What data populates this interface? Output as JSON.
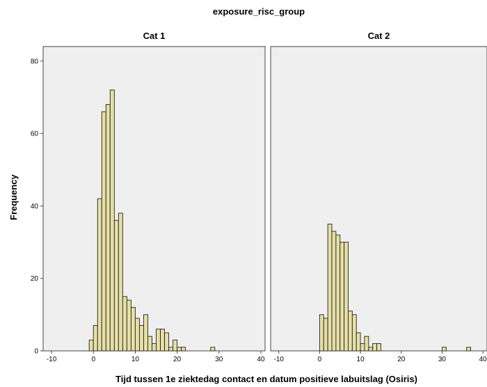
{
  "chart_data": {
    "type": "bar",
    "title": "exposure_risc_group",
    "xlabel": "Tijd tussen 1e ziektedag contact en datum positieve labuitslag (Osiris)",
    "ylabel": "Frequency",
    "xlim": [
      -12,
      41
    ],
    "ylim": [
      0,
      84
    ],
    "x_ticks": [
      -10,
      0,
      10,
      20,
      30,
      40
    ],
    "y_ticks": [
      0,
      20,
      40,
      60,
      80
    ],
    "bin_width": 1,
    "grid": false,
    "panels": [
      {
        "name": "Cat 1",
        "bins": [
          {
            "x": -1,
            "count": 3
          },
          {
            "x": 0,
            "count": 7
          },
          {
            "x": 1,
            "count": 42
          },
          {
            "x": 2,
            "count": 66
          },
          {
            "x": 3,
            "count": 68
          },
          {
            "x": 4,
            "count": 72
          },
          {
            "x": 5,
            "count": 36
          },
          {
            "x": 6,
            "count": 38
          },
          {
            "x": 7,
            "count": 15
          },
          {
            "x": 8,
            "count": 14
          },
          {
            "x": 9,
            "count": 12
          },
          {
            "x": 10,
            "count": 9
          },
          {
            "x": 11,
            "count": 7
          },
          {
            "x": 12,
            "count": 10
          },
          {
            "x": 13,
            "count": 4
          },
          {
            "x": 14,
            "count": 2
          },
          {
            "x": 15,
            "count": 6
          },
          {
            "x": 16,
            "count": 6
          },
          {
            "x": 17,
            "count": 5
          },
          {
            "x": 18,
            "count": 1
          },
          {
            "x": 19,
            "count": 3
          },
          {
            "x": 20,
            "count": 1
          },
          {
            "x": 21,
            "count": 1
          },
          {
            "x": 28,
            "count": 1
          }
        ]
      },
      {
        "name": "Cat 2",
        "bins": [
          {
            "x": 0,
            "count": 10
          },
          {
            "x": 1,
            "count": 9
          },
          {
            "x": 2,
            "count": 35
          },
          {
            "x": 3,
            "count": 33
          },
          {
            "x": 4,
            "count": 32
          },
          {
            "x": 5,
            "count": 30
          },
          {
            "x": 6,
            "count": 30
          },
          {
            "x": 7,
            "count": 11
          },
          {
            "x": 8,
            "count": 10
          },
          {
            "x": 9,
            "count": 5
          },
          {
            "x": 10,
            "count": 2
          },
          {
            "x": 11,
            "count": 4
          },
          {
            "x": 12,
            "count": 1
          },
          {
            "x": 13,
            "count": 2
          },
          {
            "x": 14,
            "count": 2
          },
          {
            "x": 30,
            "count": 1
          },
          {
            "x": 36,
            "count": 1
          }
        ]
      }
    ]
  }
}
